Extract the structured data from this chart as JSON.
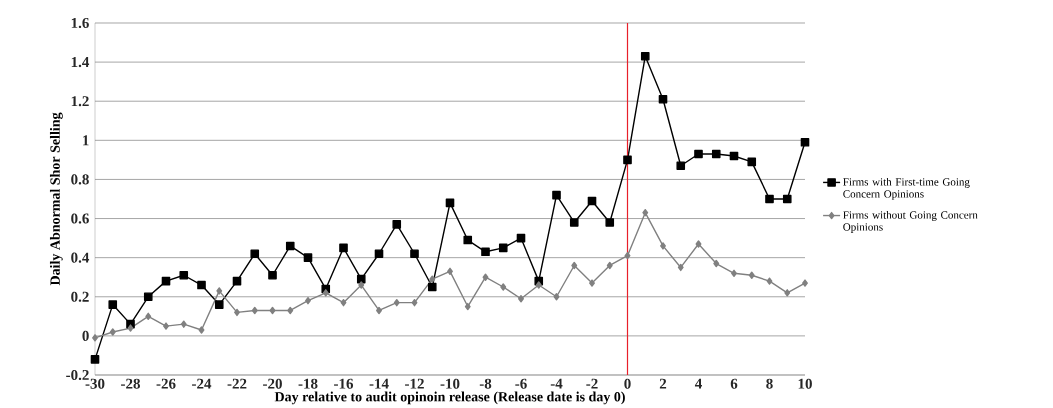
{
  "chart_data": {
    "type": "line",
    "xlabel": "Day relative to audit opinoin release (Release date is day 0)",
    "ylabel": "Daily Abnormal Shor Selling",
    "x": [
      -30,
      -29,
      -28,
      -27,
      -26,
      -25,
      -24,
      -23,
      -22,
      -21,
      -20,
      -19,
      -18,
      -17,
      -16,
      -15,
      -14,
      -13,
      -12,
      -11,
      -10,
      -9,
      -8,
      -7,
      -6,
      -5,
      -4,
      -3,
      -2,
      -1,
      0,
      1,
      2,
      3,
      4,
      5,
      6,
      7,
      8,
      9,
      10
    ],
    "series": [
      {
        "name": "Firms with First-time Going Concern Opinions",
        "color": "#000000",
        "marker": "square",
        "values": [
          -0.12,
          0.16,
          0.06,
          0.2,
          0.28,
          0.31,
          0.26,
          0.16,
          0.28,
          0.42,
          0.31,
          0.46,
          0.4,
          0.24,
          0.45,
          0.29,
          0.42,
          0.57,
          0.42,
          0.25,
          0.68,
          0.49,
          0.43,
          0.45,
          0.5,
          0.28,
          0.72,
          0.58,
          0.69,
          0.58,
          0.9,
          1.43,
          1.21,
          0.87,
          0.93,
          0.93,
          0.92,
          0.89,
          0.7,
          0.7,
          0.99
        ]
      },
      {
        "name": "Firms without Going Concern Opinions",
        "color": "#808080",
        "marker": "diamond",
        "values": [
          -0.01,
          0.02,
          0.04,
          0.1,
          0.05,
          0.06,
          0.03,
          0.23,
          0.12,
          0.13,
          0.13,
          0.13,
          0.18,
          0.22,
          0.17,
          0.26,
          0.13,
          0.17,
          0.17,
          0.29,
          0.33,
          0.15,
          0.3,
          0.25,
          0.19,
          0.26,
          0.2,
          0.36,
          0.27,
          0.36,
          0.41,
          0.63,
          0.46,
          0.35,
          0.47,
          0.37,
          0.32,
          0.31,
          0.28,
          0.22,
          0.27
        ]
      }
    ],
    "xlim": [
      -30,
      10
    ],
    "xticks": [
      -30,
      -28,
      -26,
      -24,
      -22,
      -20,
      -18,
      -16,
      -14,
      -12,
      -10,
      -8,
      -6,
      -4,
      -2,
      0,
      2,
      4,
      6,
      8,
      10
    ],
    "ylim": [
      -0.2,
      1.6
    ],
    "yticks": [
      -0.2,
      0,
      0.2,
      0.4,
      0.6,
      0.8,
      1,
      1.2,
      1.4,
      1.6
    ],
    "ref_lines": [
      {
        "axis": "x",
        "value": 0,
        "color": "#e8202a"
      }
    ],
    "grid": "y",
    "legend": "right",
    "line_style": "solid"
  }
}
